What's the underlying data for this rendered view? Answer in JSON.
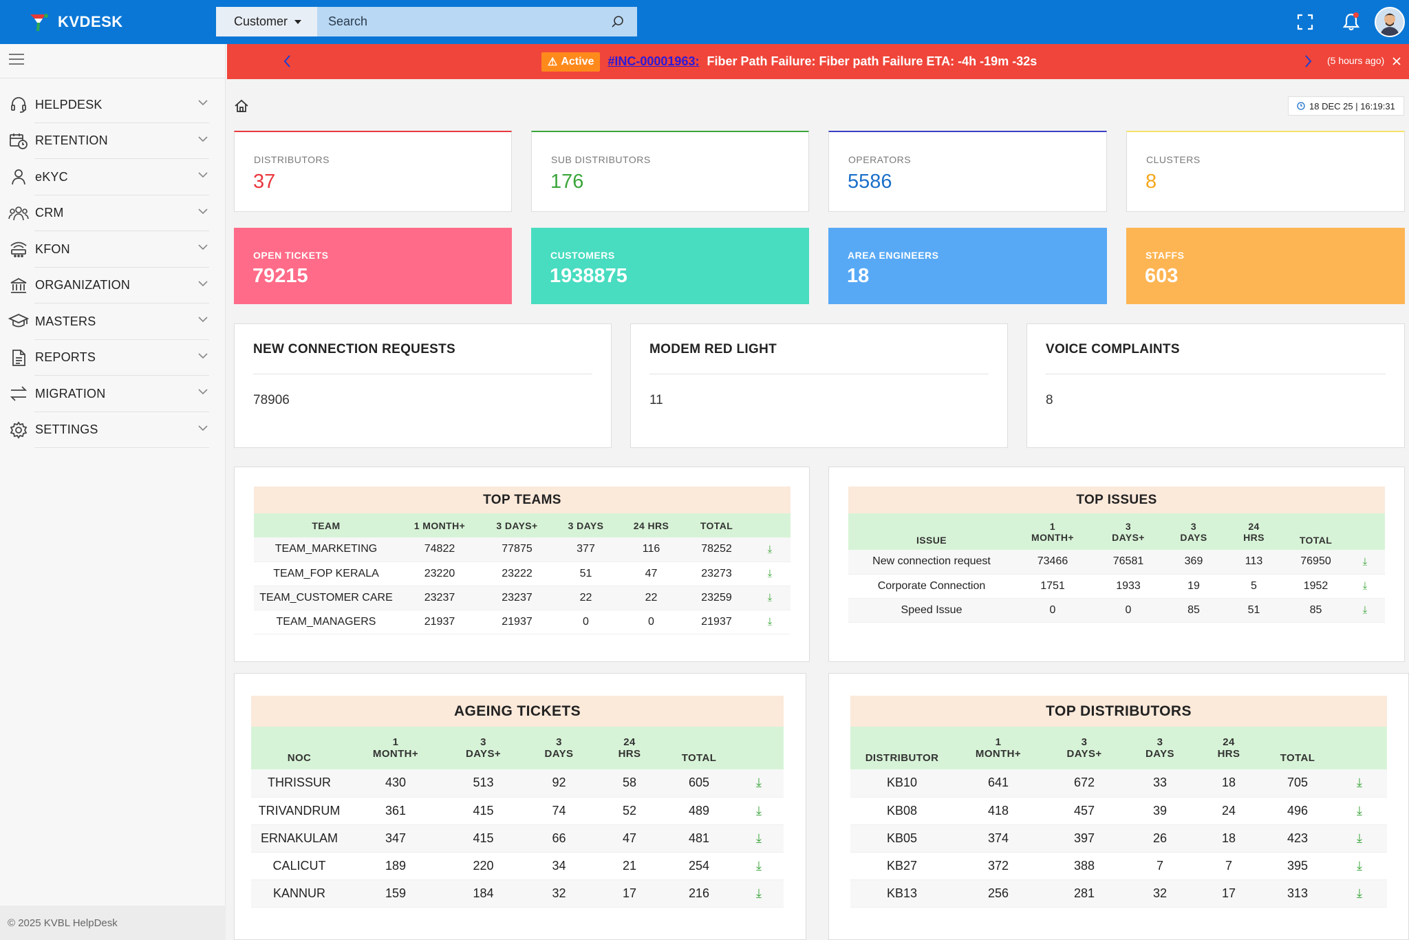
{
  "app": {
    "name": "KVDESK"
  },
  "search": {
    "type": "Customer",
    "placeholder": "Search"
  },
  "sidebar": {
    "items": [
      {
        "label": "HELPDESK",
        "icon": "headset-icon"
      },
      {
        "label": "RETENTION",
        "icon": "calendar-clock-icon"
      },
      {
        "label": "eKYC",
        "icon": "user-icon"
      },
      {
        "label": "CRM",
        "icon": "users-group-icon"
      },
      {
        "label": "KFON",
        "icon": "router-icon"
      },
      {
        "label": "ORGANIZATION",
        "icon": "bank-icon"
      },
      {
        "label": "MASTERS",
        "icon": "graduation-cap-icon"
      },
      {
        "label": "REPORTS",
        "icon": "document-icon"
      },
      {
        "label": "MIGRATION",
        "icon": "arrows-exchange-icon"
      },
      {
        "label": "SETTINGS",
        "icon": "gear-icon"
      }
    ],
    "copyright": "© 2025 KVBL HelpDesk"
  },
  "alert": {
    "status": "Active",
    "incident_id": "#INC-00001963:",
    "message": "Fiber Path Failure: Fiber path Failure ETA: -4h -19m -32s",
    "time_ago": "(5 hours ago)",
    "color": "#f0453a"
  },
  "datetime": "18 DEC 25 | 16:19:31",
  "stats": [
    {
      "label": "DISTRIBUTORS",
      "value": "37",
      "color": "#e8383d"
    },
    {
      "label": "SUB DISTRIBUTORS",
      "value": "176",
      "color": "#3aa53a"
    },
    {
      "label": "OPERATORS",
      "value": "5586",
      "color": "#1b6fc9"
    },
    {
      "label": "CLUSTERS",
      "value": "8",
      "color": "#f4a81c"
    }
  ],
  "color_stats": [
    {
      "label": "OPEN TICKETS",
      "value": "79215",
      "color": "#ff6b88"
    },
    {
      "label": "CUSTOMERS",
      "value": "1938875",
      "color": "#48dcc0"
    },
    {
      "label": "AREA ENGINEERS",
      "value": "18",
      "color": "#58a9f5"
    },
    {
      "label": "STAFFS",
      "value": "603",
      "color": "#fdb553"
    }
  ],
  "info_cards": [
    {
      "title": "NEW CONNECTION REQUESTS",
      "value": "78906"
    },
    {
      "title": "MODEM RED LIGHT",
      "value": "11"
    },
    {
      "title": "VOICE COMPLAINTS",
      "value": "8"
    }
  ],
  "top_teams": {
    "title": "TOP TEAMS",
    "headers": [
      "TEAM",
      "1 MONTH+",
      "3 DAYS+",
      "3 DAYS",
      "24 HRS",
      "TOTAL"
    ],
    "rows": [
      [
        "TEAM_MARKETING",
        "74822",
        "77875",
        "377",
        "116",
        "78252"
      ],
      [
        "TEAM_FOP KERALA",
        "23220",
        "23222",
        "51",
        "47",
        "23273"
      ],
      [
        "TEAM_CUSTOMER CARE",
        "23237",
        "23237",
        "22",
        "22",
        "23259"
      ],
      [
        "TEAM_MANAGERS",
        "21937",
        "21937",
        "0",
        "0",
        "21937"
      ]
    ]
  },
  "top_issues": {
    "title": "TOP ISSUES",
    "headers": [
      "ISSUE",
      "1\nMONTH+",
      "3\nDAYS+",
      "3\nDAYS",
      "24\nHRS",
      "TOTAL"
    ],
    "rows": [
      [
        "New connection request",
        "73466",
        "76581",
        "369",
        "113",
        "76950"
      ],
      [
        "Corporate Connection",
        "1751",
        "1933",
        "19",
        "5",
        "1952"
      ],
      [
        "Speed Issue",
        "0",
        "0",
        "85",
        "51",
        "85"
      ]
    ]
  },
  "ageing_tickets": {
    "title": "AGEING TICKETS",
    "headers": [
      "NOC",
      "1\nMONTH+",
      "3\nDAYS+",
      "3\nDAYS",
      "24\nHRS",
      "TOTAL"
    ],
    "rows": [
      [
        "THRISSUR",
        "430",
        "513",
        "92",
        "58",
        "605"
      ],
      [
        "TRIVANDRUM",
        "361",
        "415",
        "74",
        "52",
        "489"
      ],
      [
        "ERNAKULAM",
        "347",
        "415",
        "66",
        "47",
        "481"
      ],
      [
        "CALICUT",
        "189",
        "220",
        "34",
        "21",
        "254"
      ],
      [
        "KANNUR",
        "159",
        "184",
        "32",
        "17",
        "216"
      ]
    ]
  },
  "top_distributors": {
    "title": "TOP DISTRIBUTORS",
    "headers": [
      "DISTRIBUTOR",
      "1\nMONTH+",
      "3\nDAYS+",
      "3\nDAYS",
      "24\nHRS",
      "TOTAL"
    ],
    "rows": [
      [
        "KB10",
        "641",
        "672",
        "33",
        "18",
        "705"
      ],
      [
        "KB08",
        "418",
        "457",
        "39",
        "24",
        "496"
      ],
      [
        "KB05",
        "374",
        "397",
        "26",
        "18",
        "423"
      ],
      [
        "KB27",
        "372",
        "388",
        "7",
        "7",
        "395"
      ],
      [
        "KB13",
        "256",
        "281",
        "32",
        "17",
        "313"
      ]
    ]
  }
}
